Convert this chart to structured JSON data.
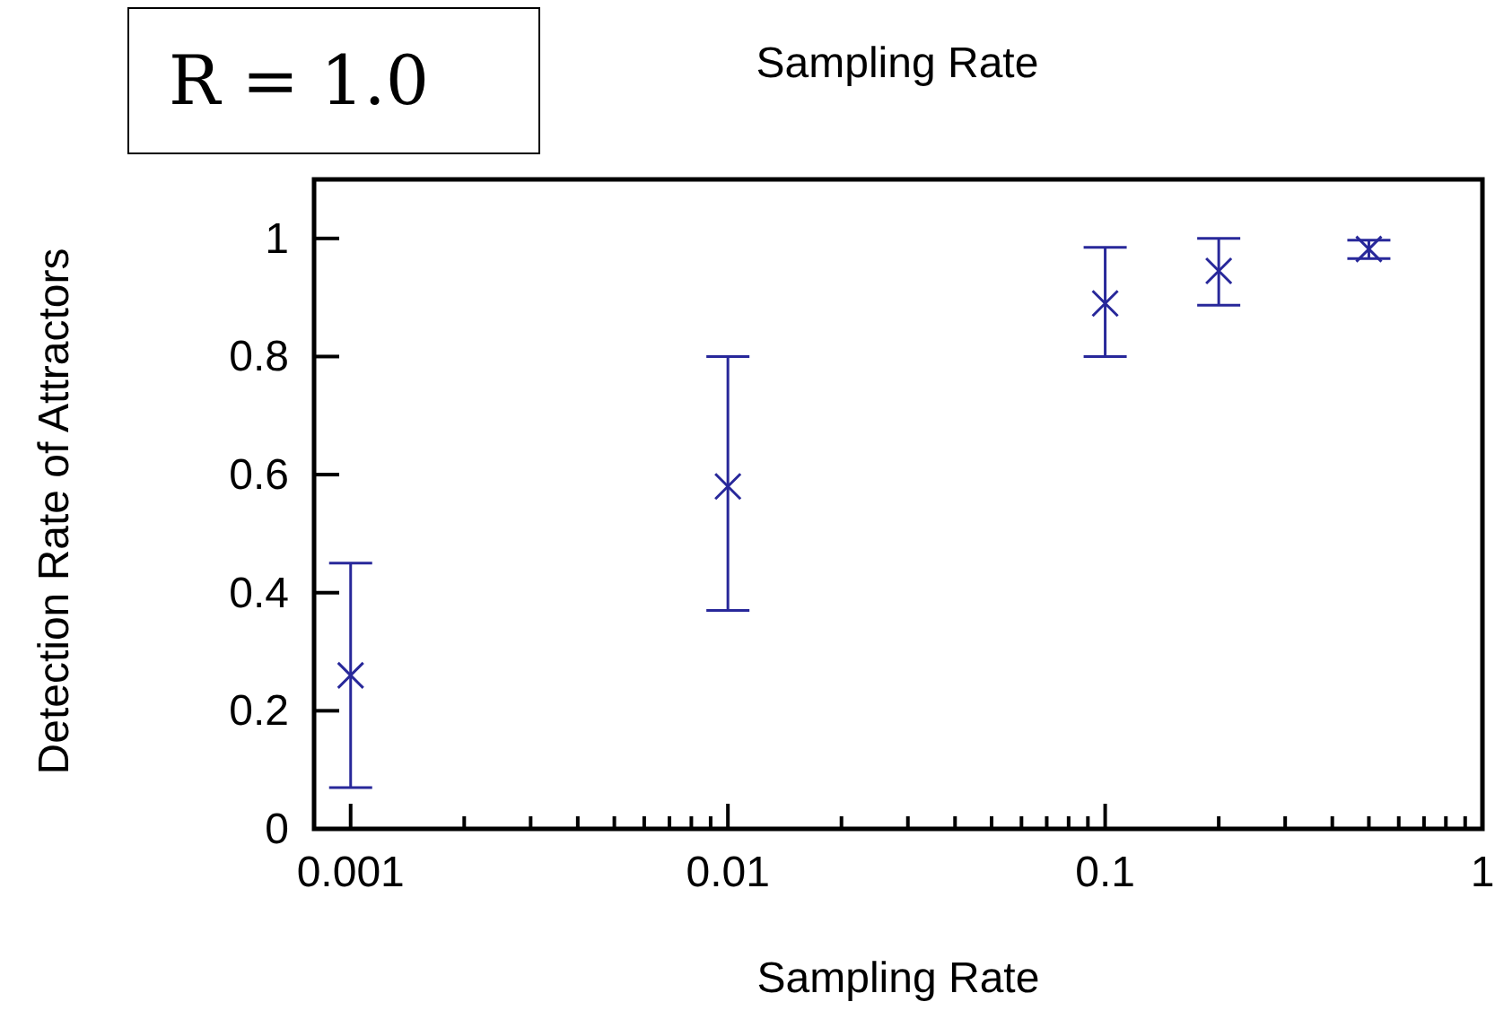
{
  "chart_data": {
    "type": "scatter",
    "title": "Sampling Rate",
    "xlabel": "Sampling Rate",
    "ylabel": "Detection Rate of Attractors",
    "annotations": [
      "R = 1.0"
    ],
    "x": [
      0.001,
      0.01,
      0.1,
      0.2,
      0.5
    ],
    "series": [
      {
        "color": "#28289a",
        "values": [
          0.26,
          0.58,
          0.89,
          0.945,
          0.982
        ],
        "errors": [
          [
            0.07,
            0.45
          ],
          [
            0.37,
            0.8
          ],
          [
            0.8,
            0.985
          ],
          [
            0.887,
            1.0
          ],
          [
            0.966,
            0.997
          ]
        ]
      }
    ],
    "log": "x",
    "marker": "cross",
    "grid": false,
    "legend": false,
    "xlim": [
      0.0008,
      1
    ],
    "ylim": [
      0,
      1.1
    ],
    "xticks": [
      0.001,
      {
        "value": 0.002,
        "label": null
      },
      {
        "value": 0.003,
        "label": null
      },
      {
        "value": 0.004,
        "label": null
      },
      {
        "value": 0.005,
        "label": null
      },
      {
        "value": 0.006,
        "label": null
      },
      {
        "value": 0.007,
        "label": null
      },
      {
        "value": 0.008,
        "label": null
      },
      {
        "value": 0.009,
        "label": null
      },
      0.01,
      {
        "value": 0.02,
        "label": null
      },
      {
        "value": 0.03,
        "label": null
      },
      {
        "value": 0.04,
        "label": null
      },
      {
        "value": 0.05,
        "label": null
      },
      {
        "value": 0.06,
        "label": null
      },
      {
        "value": 0.07,
        "label": null
      },
      {
        "value": 0.08,
        "label": null
      },
      {
        "value": 0.09,
        "label": null
      },
      0.1,
      {
        "value": 0.2,
        "label": null
      },
      {
        "value": 0.3,
        "label": null
      },
      {
        "value": 0.4,
        "label": null
      },
      {
        "value": 0.5,
        "label": null
      },
      {
        "value": 0.6,
        "label": null
      },
      {
        "value": 0.7,
        "label": null
      },
      {
        "value": 0.8,
        "label": null
      },
      {
        "value": 0.9,
        "label": null
      },
      1
    ],
    "yticks": [
      0,
      0.2,
      0.4,
      0.6,
      0.8,
      1
    ]
  }
}
